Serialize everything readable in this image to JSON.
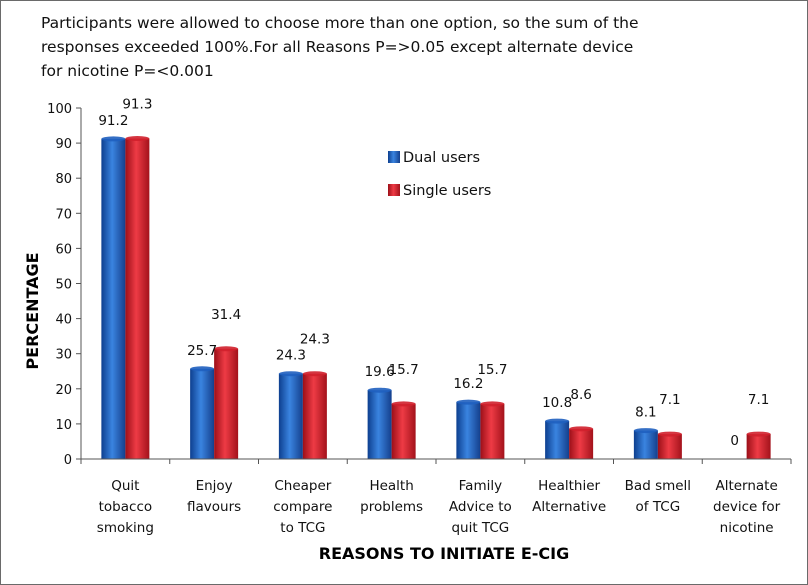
{
  "chart_data": {
    "type": "bar",
    "title": "Participants were allowed to choose more than one option, so the sum of  the\nresponses exceeded 100%.For all Reasons P=>0.05   except alternate device\nfor nicotine P=<0.001",
    "xlabel": "REASONS TO INITIATE E-CIG",
    "ylabel": "PERCENTAGE",
    "ylim": [
      0,
      100
    ],
    "yticks": [
      0,
      10,
      20,
      30,
      40,
      50,
      60,
      70,
      80,
      90,
      100
    ],
    "grid": false,
    "legend_position": "top-right",
    "categories": [
      [
        "Quit",
        "tobacco",
        "smoking"
      ],
      [
        "Enjoy",
        "flavours"
      ],
      [
        "Cheaper",
        "compare",
        "to TCG"
      ],
      [
        "Health",
        "problems"
      ],
      [
        "Family",
        "Advice to",
        "quit TCG"
      ],
      [
        "Healthier",
        "Alternative"
      ],
      [
        "Bad smell",
        "of TCG"
      ],
      [
        "Alternate",
        "device for",
        "nicotine"
      ]
    ],
    "series": [
      {
        "name": "Dual users",
        "color": "#1f5fbf",
        "values": [
          91.2,
          25.7,
          24.3,
          19.6,
          16.2,
          10.8,
          8.1,
          0
        ],
        "labels": [
          "91.2",
          "25.7",
          "24.3",
          "19.6",
          "16.2",
          "10.8",
          "8.1",
          "0"
        ]
      },
      {
        "name": "Single users",
        "color": "#d0202c",
        "values": [
          91.3,
          31.4,
          24.3,
          15.7,
          15.7,
          8.6,
          7.1,
          7.1
        ],
        "labels": [
          "91.3",
          "31.4",
          "24.3",
          "15.7",
          "15.7",
          "8.6",
          "7.1",
          "7.1"
        ]
      }
    ]
  }
}
